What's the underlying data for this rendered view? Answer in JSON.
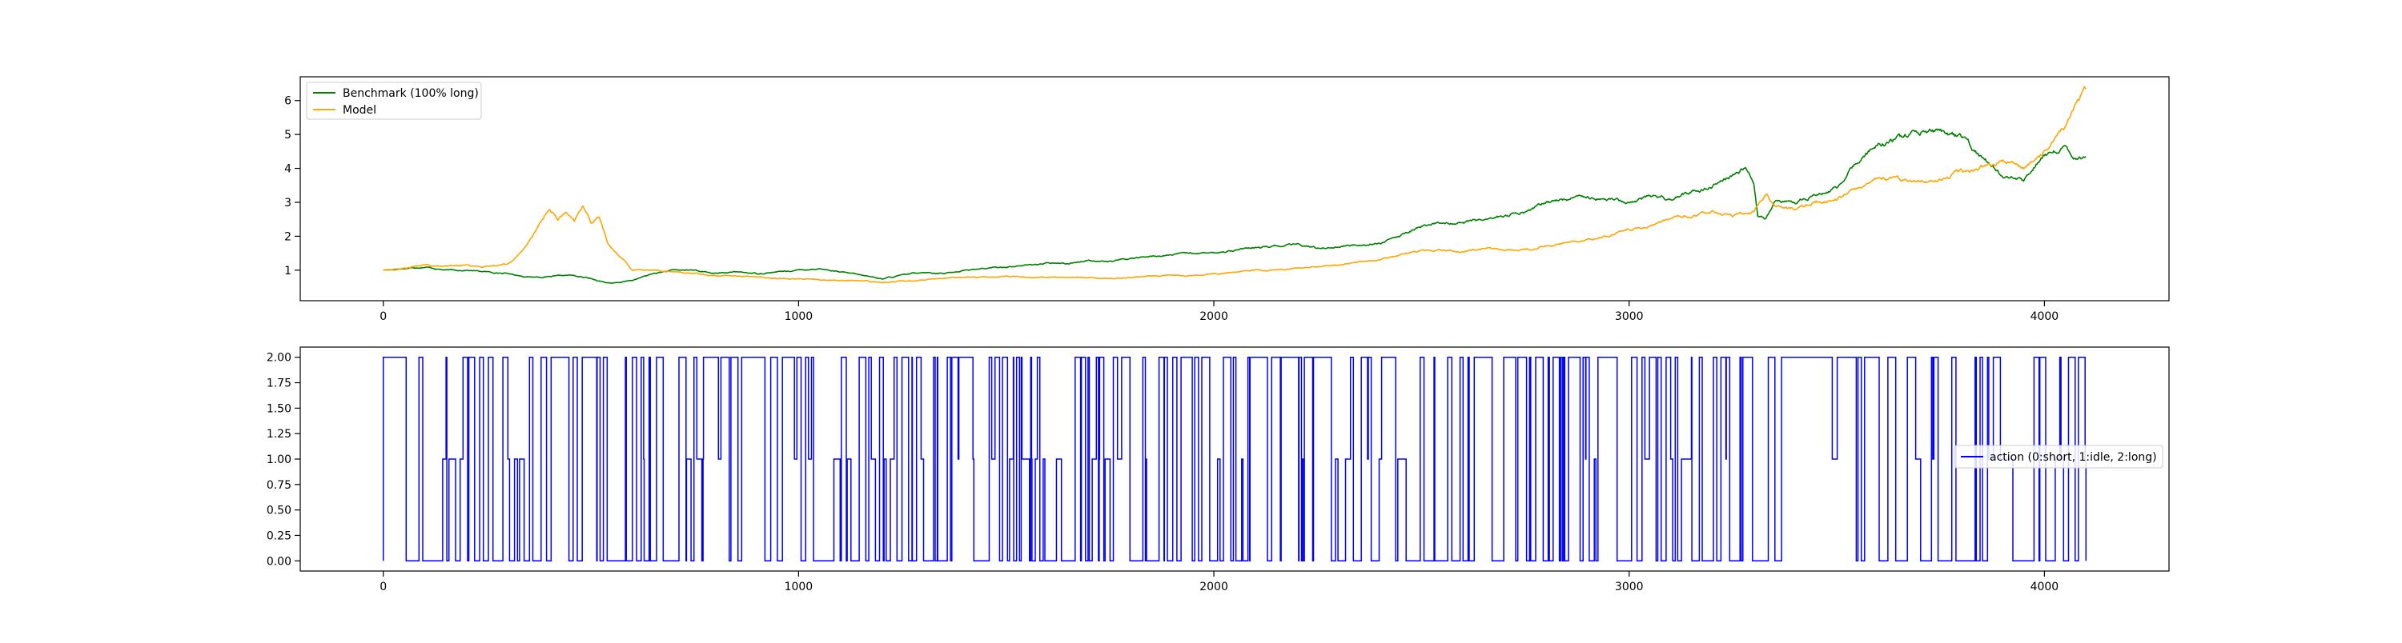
{
  "chart_data": [
    {
      "type": "line",
      "title": "",
      "xlabel": "",
      "ylabel": "",
      "xlim": [
        -200,
        4300
      ],
      "ylim": [
        0.1,
        6.7
      ],
      "x_ticks": [
        0,
        1000,
        2000,
        3000,
        4000
      ],
      "y_ticks": [
        1,
        2,
        3,
        4,
        5,
        6
      ],
      "grid": false,
      "legend": "upper-left",
      "series": [
        {
          "name": "Benchmark (100% long)",
          "color": "#008000",
          "x": [
            0,
            50,
            100,
            150,
            200,
            250,
            300,
            350,
            400,
            450,
            500,
            550,
            600,
            650,
            700,
            750,
            800,
            850,
            900,
            950,
            1000,
            1050,
            1100,
            1150,
            1200,
            1250,
            1300,
            1350,
            1400,
            1450,
            1500,
            1550,
            1600,
            1650,
            1700,
            1750,
            1800,
            1850,
            1900,
            1950,
            2000,
            2050,
            2100,
            2150,
            2200,
            2250,
            2300,
            2350,
            2400,
            2450,
            2500,
            2550,
            2600,
            2650,
            2700,
            2750,
            2800,
            2850,
            2900,
            2950,
            3000,
            3050,
            3100,
            3150,
            3200,
            3250,
            3280,
            3300,
            3310,
            3330,
            3350,
            3400,
            3450,
            3500,
            3550,
            3600,
            3650,
            3700,
            3750,
            3800,
            3850,
            3900,
            3950,
            4000,
            4050,
            4080,
            4100
          ],
          "y": [
            1.0,
            1.05,
            1.1,
            1.0,
            1.0,
            0.95,
            0.9,
            0.8,
            0.8,
            0.85,
            0.75,
            0.6,
            0.7,
            0.9,
            1.0,
            1.0,
            0.9,
            0.95,
            0.9,
            0.95,
            1.0,
            1.05,
            0.95,
            0.85,
            0.75,
            0.85,
            0.95,
            0.9,
            1.0,
            1.05,
            1.1,
            1.15,
            1.2,
            1.2,
            1.3,
            1.25,
            1.35,
            1.4,
            1.45,
            1.5,
            1.5,
            1.6,
            1.65,
            1.7,
            1.75,
            1.65,
            1.7,
            1.75,
            1.8,
            2.0,
            2.3,
            2.4,
            2.4,
            2.5,
            2.6,
            2.7,
            3.0,
            3.1,
            3.2,
            3.1,
            3.0,
            3.2,
            3.1,
            3.3,
            3.5,
            3.8,
            4.0,
            3.6,
            2.6,
            2.5,
            3.0,
            3.0,
            3.2,
            3.4,
            4.2,
            4.7,
            4.9,
            5.0,
            5.1,
            4.9,
            4.3,
            3.8,
            3.6,
            4.4,
            4.6,
            4.3,
            4.4
          ]
        },
        {
          "name": "Model",
          "color": "#FFA500",
          "x": [
            0,
            50,
            100,
            150,
            200,
            250,
            300,
            330,
            360,
            380,
            400,
            420,
            440,
            460,
            480,
            500,
            520,
            540,
            560,
            580,
            600,
            650,
            700,
            750,
            800,
            850,
            900,
            950,
            1000,
            1050,
            1100,
            1150,
            1200,
            1250,
            1300,
            1350,
            1400,
            1450,
            1500,
            1550,
            1600,
            1650,
            1700,
            1750,
            1800,
            1850,
            1900,
            1950,
            2000,
            2050,
            2100,
            2150,
            2200,
            2250,
            2300,
            2350,
            2400,
            2450,
            2500,
            2550,
            2600,
            2650,
            2700,
            2750,
            2800,
            2850,
            2900,
            2950,
            3000,
            3050,
            3100,
            3150,
            3200,
            3250,
            3300,
            3330,
            3350,
            3400,
            3450,
            3500,
            3550,
            3600,
            3650,
            3700,
            3750,
            3800,
            3850,
            3900,
            3950,
            4000,
            4050,
            4070,
            4100
          ],
          "y": [
            1.0,
            1.05,
            1.15,
            1.1,
            1.15,
            1.1,
            1.2,
            1.5,
            2.0,
            2.5,
            2.8,
            2.5,
            2.7,
            2.4,
            2.9,
            2.4,
            2.6,
            1.8,
            1.5,
            1.3,
            1.0,
            1.0,
            0.95,
            0.9,
            0.85,
            0.85,
            0.8,
            0.75,
            0.75,
            0.72,
            0.7,
            0.68,
            0.65,
            0.68,
            0.7,
            0.75,
            0.8,
            0.8,
            0.82,
            0.8,
            0.8,
            0.78,
            0.8,
            0.75,
            0.8,
            0.82,
            0.85,
            0.85,
            0.9,
            0.95,
            1.0,
            1.0,
            1.05,
            1.1,
            1.15,
            1.25,
            1.3,
            1.45,
            1.6,
            1.6,
            1.55,
            1.65,
            1.6,
            1.6,
            1.7,
            1.8,
            1.9,
            2.0,
            2.2,
            2.3,
            2.5,
            2.6,
            2.7,
            2.6,
            2.7,
            3.3,
            2.9,
            2.8,
            3.0,
            3.1,
            3.4,
            3.7,
            3.7,
            3.6,
            3.7,
            3.9,
            4.0,
            4.2,
            4.0,
            4.5,
            5.2,
            5.8,
            6.3
          ]
        }
      ]
    },
    {
      "type": "line",
      "title": "",
      "xlabel": "",
      "ylabel": "",
      "xlim": [
        -200,
        4300
      ],
      "ylim": [
        -0.1,
        2.1
      ],
      "x_ticks": [
        0,
        1000,
        2000,
        3000,
        4000
      ],
      "y_ticks": [
        0.0,
        0.25,
        0.5,
        0.75,
        1.0,
        1.25,
        1.5,
        1.75,
        2.0
      ],
      "grid": false,
      "legend": "center-right",
      "step": true,
      "x_range": [
        0,
        4100
      ],
      "series": [
        {
          "name": "action (0:short, 1:idle, 2:long)",
          "color": "#0000FF",
          "values_allowed": [
            0,
            1,
            2
          ]
        }
      ]
    }
  ],
  "tick_labels": {
    "top_x": [
      "0",
      "1000",
      "2000",
      "3000",
      "4000"
    ],
    "top_y": [
      "1",
      "2",
      "3",
      "4",
      "5",
      "6"
    ],
    "bottom_x": [
      "0",
      "1000",
      "2000",
      "3000",
      "4000"
    ],
    "bottom_y": [
      "0.00",
      "0.25",
      "0.50",
      "0.75",
      "1.00",
      "1.25",
      "1.50",
      "1.75",
      "2.00"
    ]
  },
  "legends": {
    "top": [
      "Benchmark (100% long)",
      "Model"
    ],
    "bottom": [
      "action (0:short, 1:idle, 2:long)"
    ]
  }
}
